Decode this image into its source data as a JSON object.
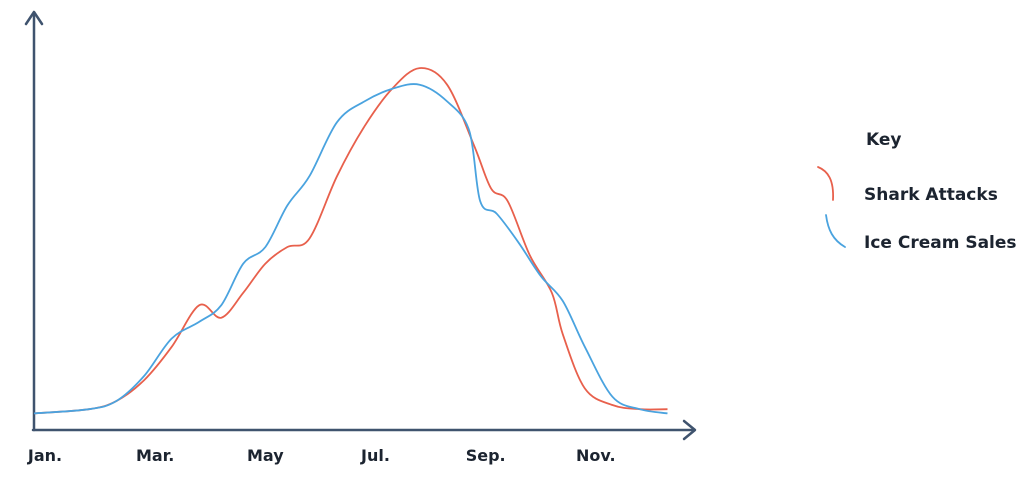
{
  "colors": {
    "axis": "#3f536e",
    "shark": "#e8604c",
    "icecream": "#4aa3df",
    "text": "#1c2430"
  },
  "chart_data": {
    "type": "line",
    "title": "",
    "xlabel": "",
    "ylabel": "",
    "x_tick_labels": [
      "Jan.",
      "Mar.",
      "May",
      "Jul.",
      "Sep.",
      "Nov."
    ],
    "legend": {
      "title": "Key",
      "placement": "right"
    },
    "grid": false,
    "xlim": [
      0,
      12
    ],
    "ylim": [
      0,
      100
    ],
    "series": [
      {
        "name": "Shark Attacks",
        "color": "#e8604c",
        "x": [
          0,
          1,
          1.5,
          2,
          2.5,
          3,
          3.4,
          3.8,
          4.2,
          4.6,
          5,
          5.5,
          6,
          6.5,
          7,
          7.5,
          8,
          8.3,
          8.6,
          9,
          9.4,
          9.6,
          10,
          10.5,
          11,
          11.5
        ],
        "y": [
          4,
          5,
          7,
          12,
          20,
          30,
          27,
          33,
          40,
          44,
          46,
          61,
          73,
          82,
          87,
          83,
          68,
          58,
          55,
          42,
          33,
          23,
          10,
          6,
          5,
          5
        ]
      },
      {
        "name": "Ice Cream Sales",
        "color": "#4aa3df",
        "x": [
          0,
          1,
          1.5,
          2,
          2.5,
          3,
          3.4,
          3.8,
          4.2,
          4.6,
          5,
          5.5,
          6,
          6.5,
          7,
          7.5,
          7.9,
          8.1,
          8.4,
          8.8,
          9.2,
          9.6,
          10,
          10.5,
          11,
          11.5
        ],
        "y": [
          4,
          5,
          7,
          13,
          22,
          26,
          30,
          40,
          44,
          54,
          61,
          74,
          79,
          82,
          83,
          79,
          72,
          55,
          52,
          45,
          37,
          31,
          20,
          8,
          5,
          4
        ]
      }
    ]
  }
}
